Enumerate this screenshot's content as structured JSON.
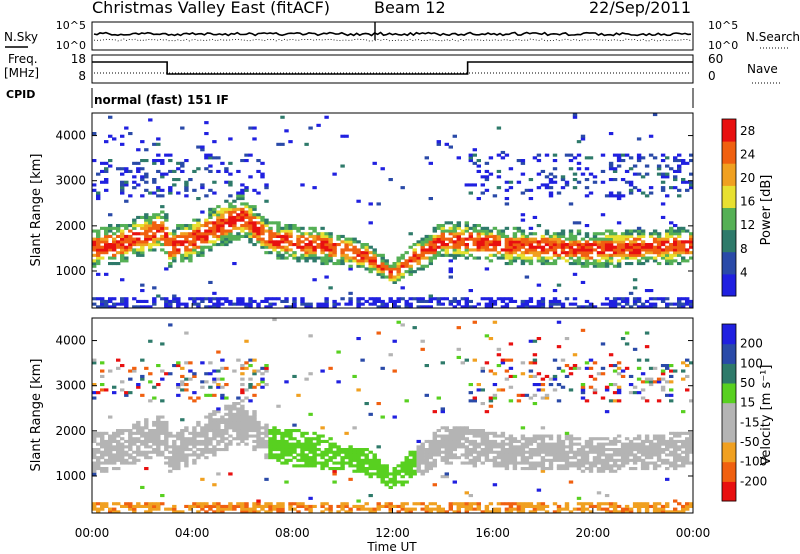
{
  "header": {
    "station": "Christmas Valley East (fitACF)",
    "beam": "Beam 12",
    "date": "22/Sep/2011"
  },
  "noise_panel": {
    "left_label": "N.Sky",
    "right_label": "N.Search",
    "left_ticks": [
      "10^5",
      "10^0"
    ],
    "right_ticks": [
      "10^5",
      "10^0"
    ]
  },
  "freq_panel": {
    "left_label_1": "Freq.",
    "left_label_2": "[MHz]",
    "right_label": "Nave",
    "left_ticks": [
      "18",
      "8"
    ],
    "right_ticks": [
      "60",
      "0"
    ]
  },
  "cpid_panel": {
    "label": "CPID",
    "text": "normal (fast) 151 IF"
  },
  "colors": {
    "power_scale": [
      "#2020e0",
      "#2a4aa8",
      "#2e7a6a",
      "#55b055",
      "#e8e030",
      "#f0a020",
      "#f06010",
      "#e81010"
    ],
    "velocity_scale": [
      "#e81010",
      "#f06010",
      "#f0a020",
      "#b4b4b4",
      "#b4b4b4",
      "#58d020",
      "#2e7a6a",
      "#2a4aa8",
      "#2020e0"
    ]
  },
  "chart_data": [
    {
      "type": "heatmap",
      "name": "power",
      "ylabel": "Slant Range [km]",
      "yticks": [
        1000,
        2000,
        3000,
        4000
      ],
      "ylim": [
        180,
        4500
      ],
      "xlim": [
        0,
        24
      ],
      "colorbar": {
        "label": "Power [dB]",
        "ticks": [
          4,
          8,
          12,
          16,
          20,
          24,
          28
        ],
        "range": [
          0,
          30
        ]
      },
      "echo_bands": [
        {
          "t": 0.0,
          "center_km": 1500,
          "width_km": 900
        },
        {
          "t": 1.0,
          "center_km": 1550,
          "width_km": 900
        },
        {
          "t": 2.0,
          "center_km": 1750,
          "width_km": 900
        },
        {
          "t": 2.9,
          "center_km": 1900,
          "width_km": 900
        },
        {
          "t": 3.1,
          "center_km": 1500,
          "width_km": 900
        },
        {
          "t": 4.0,
          "center_km": 1650,
          "width_km": 900
        },
        {
          "t": 5.0,
          "center_km": 1950,
          "width_km": 1000
        },
        {
          "t": 6.0,
          "center_km": 2200,
          "width_km": 1000
        },
        {
          "t": 7.0,
          "center_km": 1700,
          "width_km": 800
        },
        {
          "t": 8.0,
          "center_km": 1600,
          "width_km": 800
        },
        {
          "t": 9.0,
          "center_km": 1550,
          "width_km": 800
        },
        {
          "t": 10.0,
          "center_km": 1450,
          "width_km": 700
        },
        {
          "t": 11.0,
          "center_km": 1300,
          "width_km": 600
        },
        {
          "t": 12.0,
          "center_km": 900,
          "width_km": 500
        },
        {
          "t": 13.0,
          "center_km": 1300,
          "width_km": 700
        },
        {
          "t": 14.0,
          "center_km": 1650,
          "width_km": 800
        },
        {
          "t": 15.0,
          "center_km": 1650,
          "width_km": 800
        },
        {
          "t": 16.0,
          "center_km": 1550,
          "width_km": 800
        },
        {
          "t": 18.0,
          "center_km": 1500,
          "width_km": 800
        },
        {
          "t": 20.0,
          "center_km": 1450,
          "width_km": 800
        },
        {
          "t": 22.0,
          "center_km": 1500,
          "width_km": 800
        },
        {
          "t": 24.0,
          "center_km": 1550,
          "width_km": 800
        }
      ]
    },
    {
      "type": "heatmap",
      "name": "velocity",
      "ylabel": "Slant Range [km]",
      "yticks": [
        1000,
        2000,
        3000,
        4000
      ],
      "ylim": [
        180,
        4500
      ],
      "xlim": [
        0,
        24
      ],
      "xlabel": "Time UT",
      "xticks": [
        "00:00",
        "04:00",
        "08:00",
        "12:00",
        "16:00",
        "20:00",
        "00:00"
      ],
      "colorbar": {
        "label": "Velocity [m s⁻¹]",
        "ticks": [
          200,
          100,
          50,
          15,
          -15,
          -50,
          -100,
          -200
        ],
        "range": [
          -250,
          250
        ]
      }
    }
  ]
}
